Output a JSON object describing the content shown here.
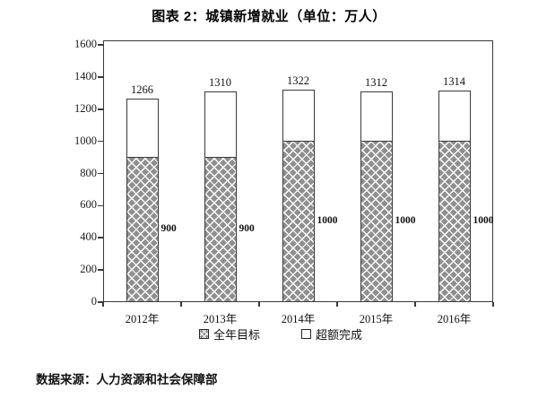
{
  "page": {
    "title": "图表 2：城镇新增就业（单位：万人）",
    "source": "数据来源：人力资源和社会保障部"
  },
  "chart_data": {
    "type": "bar",
    "stacked": true,
    "title": "图表 2：城镇新增就业（单位：万人）",
    "unit": "万人",
    "categories": [
      "2012年",
      "2013年",
      "2014年",
      "2015年",
      "2016年"
    ],
    "series": [
      {
        "name": "全年目标",
        "style": "hatched",
        "values": [
          900,
          900,
          1000,
          1000,
          1000
        ]
      },
      {
        "name": "超额完成",
        "style": "white",
        "values": [
          366,
          410,
          322,
          312,
          314
        ]
      }
    ],
    "totals": [
      1266,
      1310,
      1322,
      1312,
      1314
    ],
    "segment_labels": [
      "900",
      "900",
      "1000",
      "1000",
      "1000"
    ],
    "ylim": [
      0,
      1600
    ],
    "y_ticks": [
      0,
      200,
      400,
      600,
      800,
      1000,
      1200,
      1400,
      1600
    ],
    "legend_position": "bottom",
    "grid": false,
    "colors": {
      "hatch_fill": "#8f8f8f",
      "hatch_line": "#ffffff",
      "bar_border": "#3a3a3a",
      "text": "#1a1a1a"
    }
  }
}
